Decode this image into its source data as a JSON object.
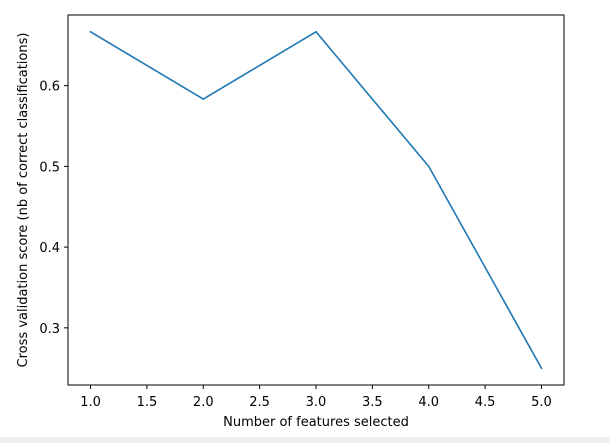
{
  "chart_data": {
    "type": "line",
    "title": "",
    "xlabel": "Number of features selected",
    "ylabel": "Cross validation score (nb of correct classifications)",
    "x": [
      1,
      2,
      3,
      4,
      5
    ],
    "series": [
      {
        "values": [
          0.6667,
          0.5833,
          0.6667,
          0.5,
          0.25
        ]
      }
    ],
    "xlim": [
      0.8,
      5.2
    ],
    "ylim": [
      0.2292,
      0.6875
    ],
    "xticks": [
      "1.0",
      "1.5",
      "2.0",
      "2.5",
      "3.0",
      "3.5",
      "4.0",
      "4.5",
      "5.0"
    ],
    "yticks": [
      "0.3",
      "0.4",
      "0.5",
      "0.6"
    ],
    "line_color": "#1f77b4",
    "grid": false,
    "legend": "none"
  }
}
